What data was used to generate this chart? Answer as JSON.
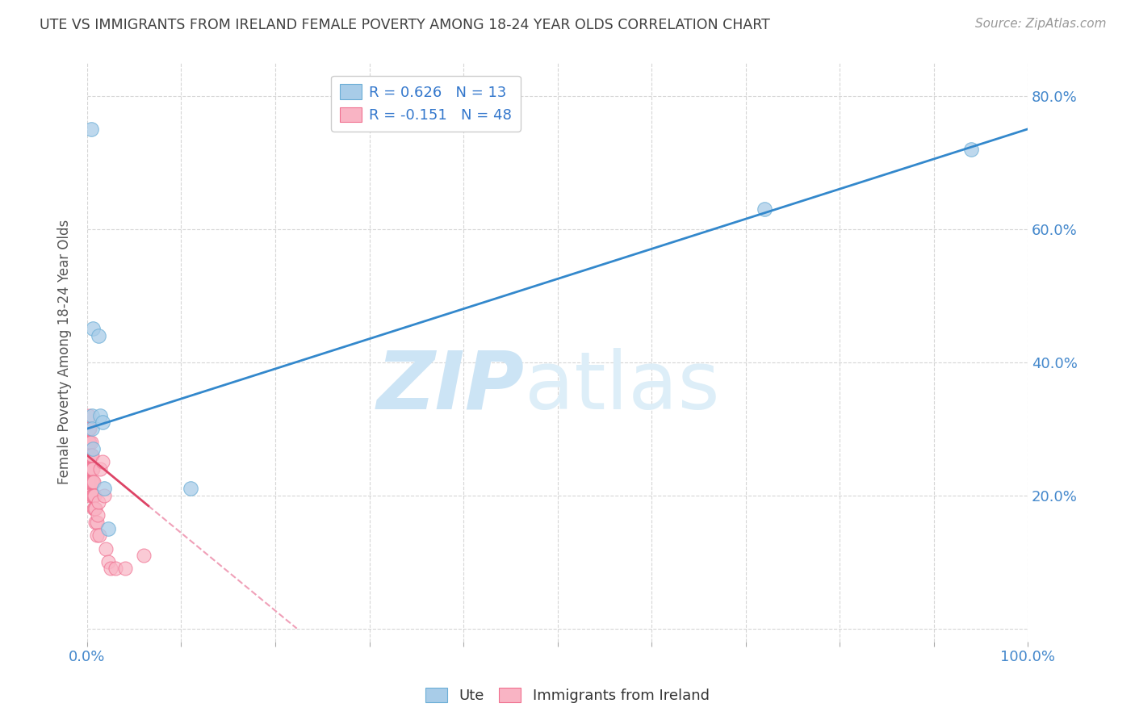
{
  "title": "UTE VS IMMIGRANTS FROM IRELAND FEMALE POVERTY AMONG 18-24 YEAR OLDS CORRELATION CHART",
  "source": "Source: ZipAtlas.com",
  "ylabel": "Female Poverty Among 18-24 Year Olds",
  "xlim": [
    0.0,
    1.0
  ],
  "ylim": [
    -0.02,
    0.85
  ],
  "yticks": [
    0.0,
    0.2,
    0.4,
    0.6,
    0.8
  ],
  "ute_x": [
    0.004,
    0.005,
    0.005,
    0.006,
    0.006,
    0.012,
    0.014,
    0.016,
    0.018,
    0.022,
    0.11,
    0.72,
    0.94
  ],
  "ute_y": [
    0.75,
    0.32,
    0.3,
    0.27,
    0.45,
    0.44,
    0.32,
    0.31,
    0.21,
    0.15,
    0.21,
    0.63,
    0.72
  ],
  "ireland_x": [
    0.001,
    0.001,
    0.001,
    0.001,
    0.002,
    0.002,
    0.002,
    0.002,
    0.002,
    0.002,
    0.003,
    0.003,
    0.003,
    0.003,
    0.003,
    0.003,
    0.004,
    0.004,
    0.004,
    0.004,
    0.005,
    0.005,
    0.005,
    0.005,
    0.006,
    0.006,
    0.006,
    0.007,
    0.007,
    0.007,
    0.008,
    0.008,
    0.009,
    0.009,
    0.01,
    0.01,
    0.011,
    0.012,
    0.013,
    0.014,
    0.016,
    0.018,
    0.02,
    0.022,
    0.025,
    0.03,
    0.04,
    0.06
  ],
  "ireland_y": [
    0.28,
    0.26,
    0.24,
    0.22,
    0.32,
    0.3,
    0.28,
    0.26,
    0.24,
    0.22,
    0.3,
    0.28,
    0.26,
    0.24,
    0.22,
    0.2,
    0.28,
    0.26,
    0.24,
    0.22,
    0.26,
    0.24,
    0.22,
    0.2,
    0.24,
    0.22,
    0.2,
    0.22,
    0.2,
    0.18,
    0.2,
    0.18,
    0.18,
    0.16,
    0.16,
    0.14,
    0.17,
    0.19,
    0.14,
    0.24,
    0.25,
    0.2,
    0.12,
    0.1,
    0.09,
    0.09,
    0.09,
    0.11
  ],
  "ute_R": 0.626,
  "ute_N": 13,
  "ireland_R": -0.151,
  "ireland_N": 48,
  "ute_color": "#a8cce8",
  "ute_edge_color": "#6baed6",
  "ireland_color": "#f9b4c4",
  "ireland_edge_color": "#f07090",
  "ute_line_color": "#3388cc",
  "ireland_line_color": "#dd4466",
  "ireland_dash_color": "#f0a0b8",
  "watermark_zip": "ZIP",
  "watermark_atlas": "atlas",
  "watermark_color": "#cce4f5",
  "background_color": "#ffffff",
  "grid_color": "#cccccc",
  "title_color": "#404040",
  "axis_tick_color": "#4488cc",
  "legend_color": "#3377cc",
  "ylabel_color": "#555555",
  "bottom_legend_color": "#333333"
}
